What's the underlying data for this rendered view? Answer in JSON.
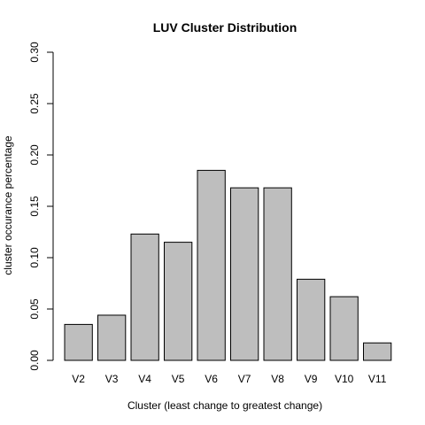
{
  "chart_data": {
    "type": "bar",
    "title": "LUV Cluster Distribution",
    "xlabel": "Cluster (least change to greatest change)",
    "ylabel": "cluster occurance percentage",
    "categories": [
      "V2",
      "V3",
      "V4",
      "V5",
      "V6",
      "V7",
      "V8",
      "V9",
      "V10",
      "V11"
    ],
    "values": [
      0.035,
      0.044,
      0.123,
      0.115,
      0.185,
      0.168,
      0.168,
      0.079,
      0.062,
      0.017
    ],
    "ylim": [
      0,
      0.3
    ],
    "yticks": [
      "0.00",
      "0.05",
      "0.10",
      "0.15",
      "0.20",
      "0.25",
      "0.30"
    ],
    "bar_color": "#bebebe",
    "bar_edge_color": "#000000",
    "grid": false
  }
}
